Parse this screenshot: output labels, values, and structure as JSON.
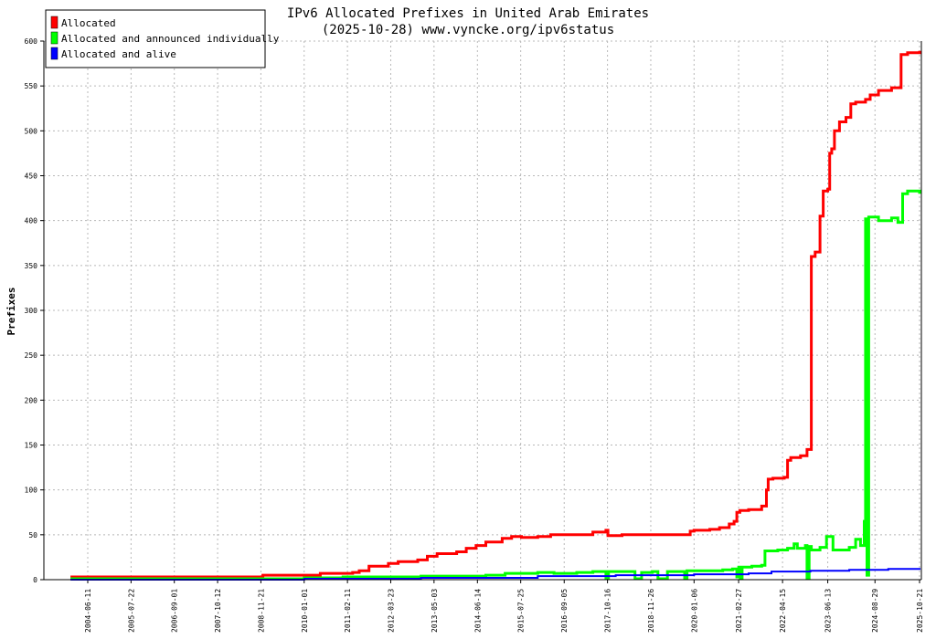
{
  "chart_data": {
    "type": "line",
    "title": "IPv6 Allocated Prefixes in United Arab Emirates",
    "subtitle": "(2025-10-28) www.vyncke.org/ipv6status",
    "ylabel": "Prefixes",
    "xlabel": "",
    "x_ticks": [
      "2004-06-11",
      "2005-07-22",
      "2006-09-01",
      "2007-10-12",
      "2008-11-21",
      "2010-01-01",
      "2011-02-11",
      "2012-03-23",
      "2013-05-03",
      "2014-06-14",
      "2015-07-25",
      "2016-09-05",
      "2017-10-16",
      "2018-11-26",
      "2020-01-06",
      "2021-02-27",
      "2022-04-15",
      "2023-06-13",
      "2024-08-29",
      "2025-10-21"
    ],
    "y_ticks": [
      0,
      50,
      100,
      150,
      200,
      250,
      300,
      350,
      400,
      450,
      500,
      550,
      600
    ],
    "ylim": [
      0,
      600
    ],
    "grid": true,
    "legend_position": "top-left",
    "series": [
      {
        "name": "Allocated",
        "color": "#ff0000",
        "points": [
          [
            "2004-01-01",
            3
          ],
          [
            "2008-11-21",
            3
          ],
          [
            "2008-12-10",
            5
          ],
          [
            "2009-12-15",
            5
          ],
          [
            "2010-06-01",
            7
          ],
          [
            "2011-04-01",
            8
          ],
          [
            "2011-06-01",
            10
          ],
          [
            "2011-09-01",
            15
          ],
          [
            "2012-03-01",
            18
          ],
          [
            "2012-06-01",
            20
          ],
          [
            "2012-12-01",
            22
          ],
          [
            "2013-03-01",
            26
          ],
          [
            "2013-06-01",
            29
          ],
          [
            "2013-12-01",
            31
          ],
          [
            "2014-03-01",
            35
          ],
          [
            "2014-06-01",
            38
          ],
          [
            "2014-09-01",
            42
          ],
          [
            "2015-02-01",
            46
          ],
          [
            "2015-05-01",
            48
          ],
          [
            "2015-08-01",
            47
          ],
          [
            "2016-01-01",
            48
          ],
          [
            "2016-05-01",
            50
          ],
          [
            "2016-12-01",
            50
          ],
          [
            "2017-06-01",
            53
          ],
          [
            "2017-10-01",
            55
          ],
          [
            "2017-10-20",
            49
          ],
          [
            "2018-03-01",
            50
          ],
          [
            "2019-08-01",
            50
          ],
          [
            "2019-12-01",
            54
          ],
          [
            "2020-01-06",
            55
          ],
          [
            "2020-06-01",
            56
          ],
          [
            "2020-09-01",
            58
          ],
          [
            "2020-12-01",
            62
          ],
          [
            "2021-01-15",
            65
          ],
          [
            "2021-02-10",
            75
          ],
          [
            "2021-03-10",
            77
          ],
          [
            "2021-06-01",
            78
          ],
          [
            "2021-10-01",
            82
          ],
          [
            "2021-11-15",
            100
          ],
          [
            "2021-12-01",
            112
          ],
          [
            "2022-01-15",
            113
          ],
          [
            "2022-05-01",
            114
          ],
          [
            "2022-06-01",
            133
          ],
          [
            "2022-07-01",
            136
          ],
          [
            "2022-10-01",
            138
          ],
          [
            "2022-12-01",
            145
          ],
          [
            "2023-01-10",
            360
          ],
          [
            "2023-02-15",
            365
          ],
          [
            "2023-04-01",
            405
          ],
          [
            "2023-05-01",
            433
          ],
          [
            "2023-06-13",
            435
          ],
          [
            "2023-07-01",
            475
          ],
          [
            "2023-07-20",
            480
          ],
          [
            "2023-08-15",
            500
          ],
          [
            "2023-10-01",
            510
          ],
          [
            "2023-12-01",
            515
          ],
          [
            "2024-01-15",
            530
          ],
          [
            "2024-03-01",
            532
          ],
          [
            "2024-06-01",
            535
          ],
          [
            "2024-07-15",
            540
          ],
          [
            "2024-10-01",
            545
          ],
          [
            "2025-02-01",
            548
          ],
          [
            "2025-04-01",
            548
          ],
          [
            "2025-05-01",
            585
          ],
          [
            "2025-07-01",
            587
          ],
          [
            "2025-10-21",
            589
          ]
        ]
      },
      {
        "name": "Allocated and announced individually",
        "color": "#00ff00",
        "points": [
          [
            "2004-01-01",
            1
          ],
          [
            "2009-06-01",
            1
          ],
          [
            "2010-01-01",
            2
          ],
          [
            "2011-01-01",
            3
          ],
          [
            "2012-01-01",
            3
          ],
          [
            "2013-01-01",
            4
          ],
          [
            "2014-01-01",
            4
          ],
          [
            "2014-09-01",
            5
          ],
          [
            "2015-03-01",
            7
          ],
          [
            "2016-01-01",
            8
          ],
          [
            "2016-06-01",
            7
          ],
          [
            "2017-01-01",
            8
          ],
          [
            "2017-06-01",
            9
          ],
          [
            "2017-10-01",
            1
          ],
          [
            "2017-10-25",
            9
          ],
          [
            "2018-03-01",
            9
          ],
          [
            "2018-07-01",
            1
          ],
          [
            "2018-09-01",
            8
          ],
          [
            "2018-12-10",
            9
          ],
          [
            "2019-02-01",
            1
          ],
          [
            "2019-05-01",
            9
          ],
          [
            "2019-10-01",
            9
          ],
          [
            "2019-10-10",
            1
          ],
          [
            "2019-11-01",
            10
          ],
          [
            "2020-06-01",
            10
          ],
          [
            "2020-10-01",
            11
          ],
          [
            "2021-01-01",
            12
          ],
          [
            "2021-02-10",
            3
          ],
          [
            "2021-02-28",
            14
          ],
          [
            "2021-03-15",
            2
          ],
          [
            "2021-04-01",
            14
          ],
          [
            "2021-07-01",
            15
          ],
          [
            "2021-10-01",
            16
          ],
          [
            "2021-11-01",
            32
          ],
          [
            "2022-03-01",
            33
          ],
          [
            "2022-06-01",
            35
          ],
          [
            "2022-08-01",
            40
          ],
          [
            "2022-09-01",
            35
          ],
          [
            "2022-11-15",
            38
          ],
          [
            "2022-12-01",
            2
          ],
          [
            "2022-12-20",
            37
          ],
          [
            "2023-01-10",
            33
          ],
          [
            "2023-04-01",
            36
          ],
          [
            "2023-06-01",
            48
          ],
          [
            "2023-08-01",
            33
          ],
          [
            "2024-01-01",
            36
          ],
          [
            "2024-03-01",
            45
          ],
          [
            "2024-04-15",
            38
          ],
          [
            "2024-05-20",
            65
          ],
          [
            "2024-06-01",
            402
          ],
          [
            "2024-06-15",
            5
          ],
          [
            "2024-07-01",
            404
          ],
          [
            "2024-10-01",
            400
          ],
          [
            "2025-02-01",
            403
          ],
          [
            "2025-04-01",
            398
          ],
          [
            "2025-05-15",
            430
          ],
          [
            "2025-07-01",
            433
          ],
          [
            "2025-10-21",
            430
          ]
        ]
      },
      {
        "name": "Allocated and alive",
        "color": "#0000ff",
        "points": [
          [
            "2004-01-01",
            0
          ],
          [
            "2010-01-01",
            1
          ],
          [
            "2013-01-01",
            2
          ],
          [
            "2016-01-01",
            4
          ],
          [
            "2018-01-01",
            5
          ],
          [
            "2020-01-06",
            6
          ],
          [
            "2021-06-01",
            7
          ],
          [
            "2022-01-01",
            9
          ],
          [
            "2023-01-01",
            10
          ],
          [
            "2024-01-01",
            11
          ],
          [
            "2025-01-01",
            12
          ],
          [
            "2025-10-21",
            13
          ]
        ]
      }
    ]
  }
}
